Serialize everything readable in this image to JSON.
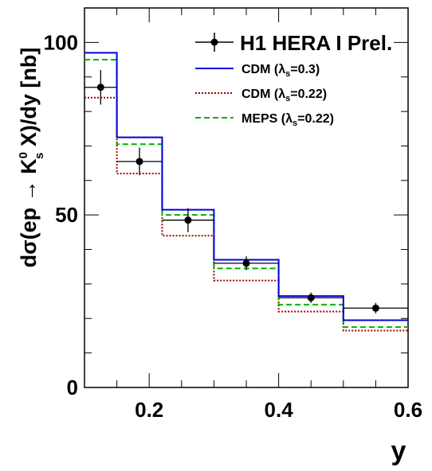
{
  "chart_data": {
    "type": "line",
    "xlabel": "y",
    "ylabel": {
      "prefix": "dσ(ep → K",
      "sup": "0",
      "sub": "s",
      "suffix": " X)/dy [nb]"
    },
    "xlim": [
      0.1,
      0.6
    ],
    "ylim": [
      0,
      110
    ],
    "x_ticks": [
      0.2,
      0.4,
      0.6
    ],
    "x_tick_labels": [
      "0.2",
      "0.4",
      "0.6"
    ],
    "y_ticks": [
      0,
      50,
      100
    ],
    "y_tick_labels": [
      "0",
      "50",
      "100"
    ],
    "bin_edges": [
      0.1,
      0.15,
      0.22,
      0.3,
      0.4,
      0.5,
      0.6
    ],
    "legend_position": "top-right",
    "series": [
      {
        "name": "H1 HERA I Prel.",
        "type": "points",
        "color": "#000000",
        "x": [
          0.125,
          0.185,
          0.26,
          0.35,
          0.45,
          0.55
        ],
        "y": [
          87,
          65.5,
          48.5,
          36,
          26,
          23
        ],
        "y_err": [
          5,
          4,
          3.5,
          2,
          1.5,
          1.5
        ]
      },
      {
        "name": "CDM (λs=0.3)",
        "legend_main": "CDM (λ",
        "legend_sub": "s",
        "legend_tail": "=0.3)",
        "type": "step",
        "color": "#0000dd",
        "style": "solid",
        "values": [
          97,
          72.5,
          51.5,
          37,
          26.5,
          19.5
        ]
      },
      {
        "name": "CDM (λs=0.22)",
        "legend_main": "CDM (λ",
        "legend_sub": "s",
        "legend_tail": "=0.22)",
        "type": "step",
        "color": "#a00000",
        "style": "dotted",
        "values": [
          84,
          62,
          44,
          31,
          22,
          16.5
        ]
      },
      {
        "name": "MEPS (λs=0.22)",
        "legend_main": "MEPS (λ",
        "legend_sub": "s",
        "legend_tail": "=0.22)",
        "type": "step",
        "color": "#00b000",
        "style": "dashed",
        "values": [
          95,
          70.5,
          50,
          34.5,
          24,
          17.5
        ]
      }
    ]
  }
}
